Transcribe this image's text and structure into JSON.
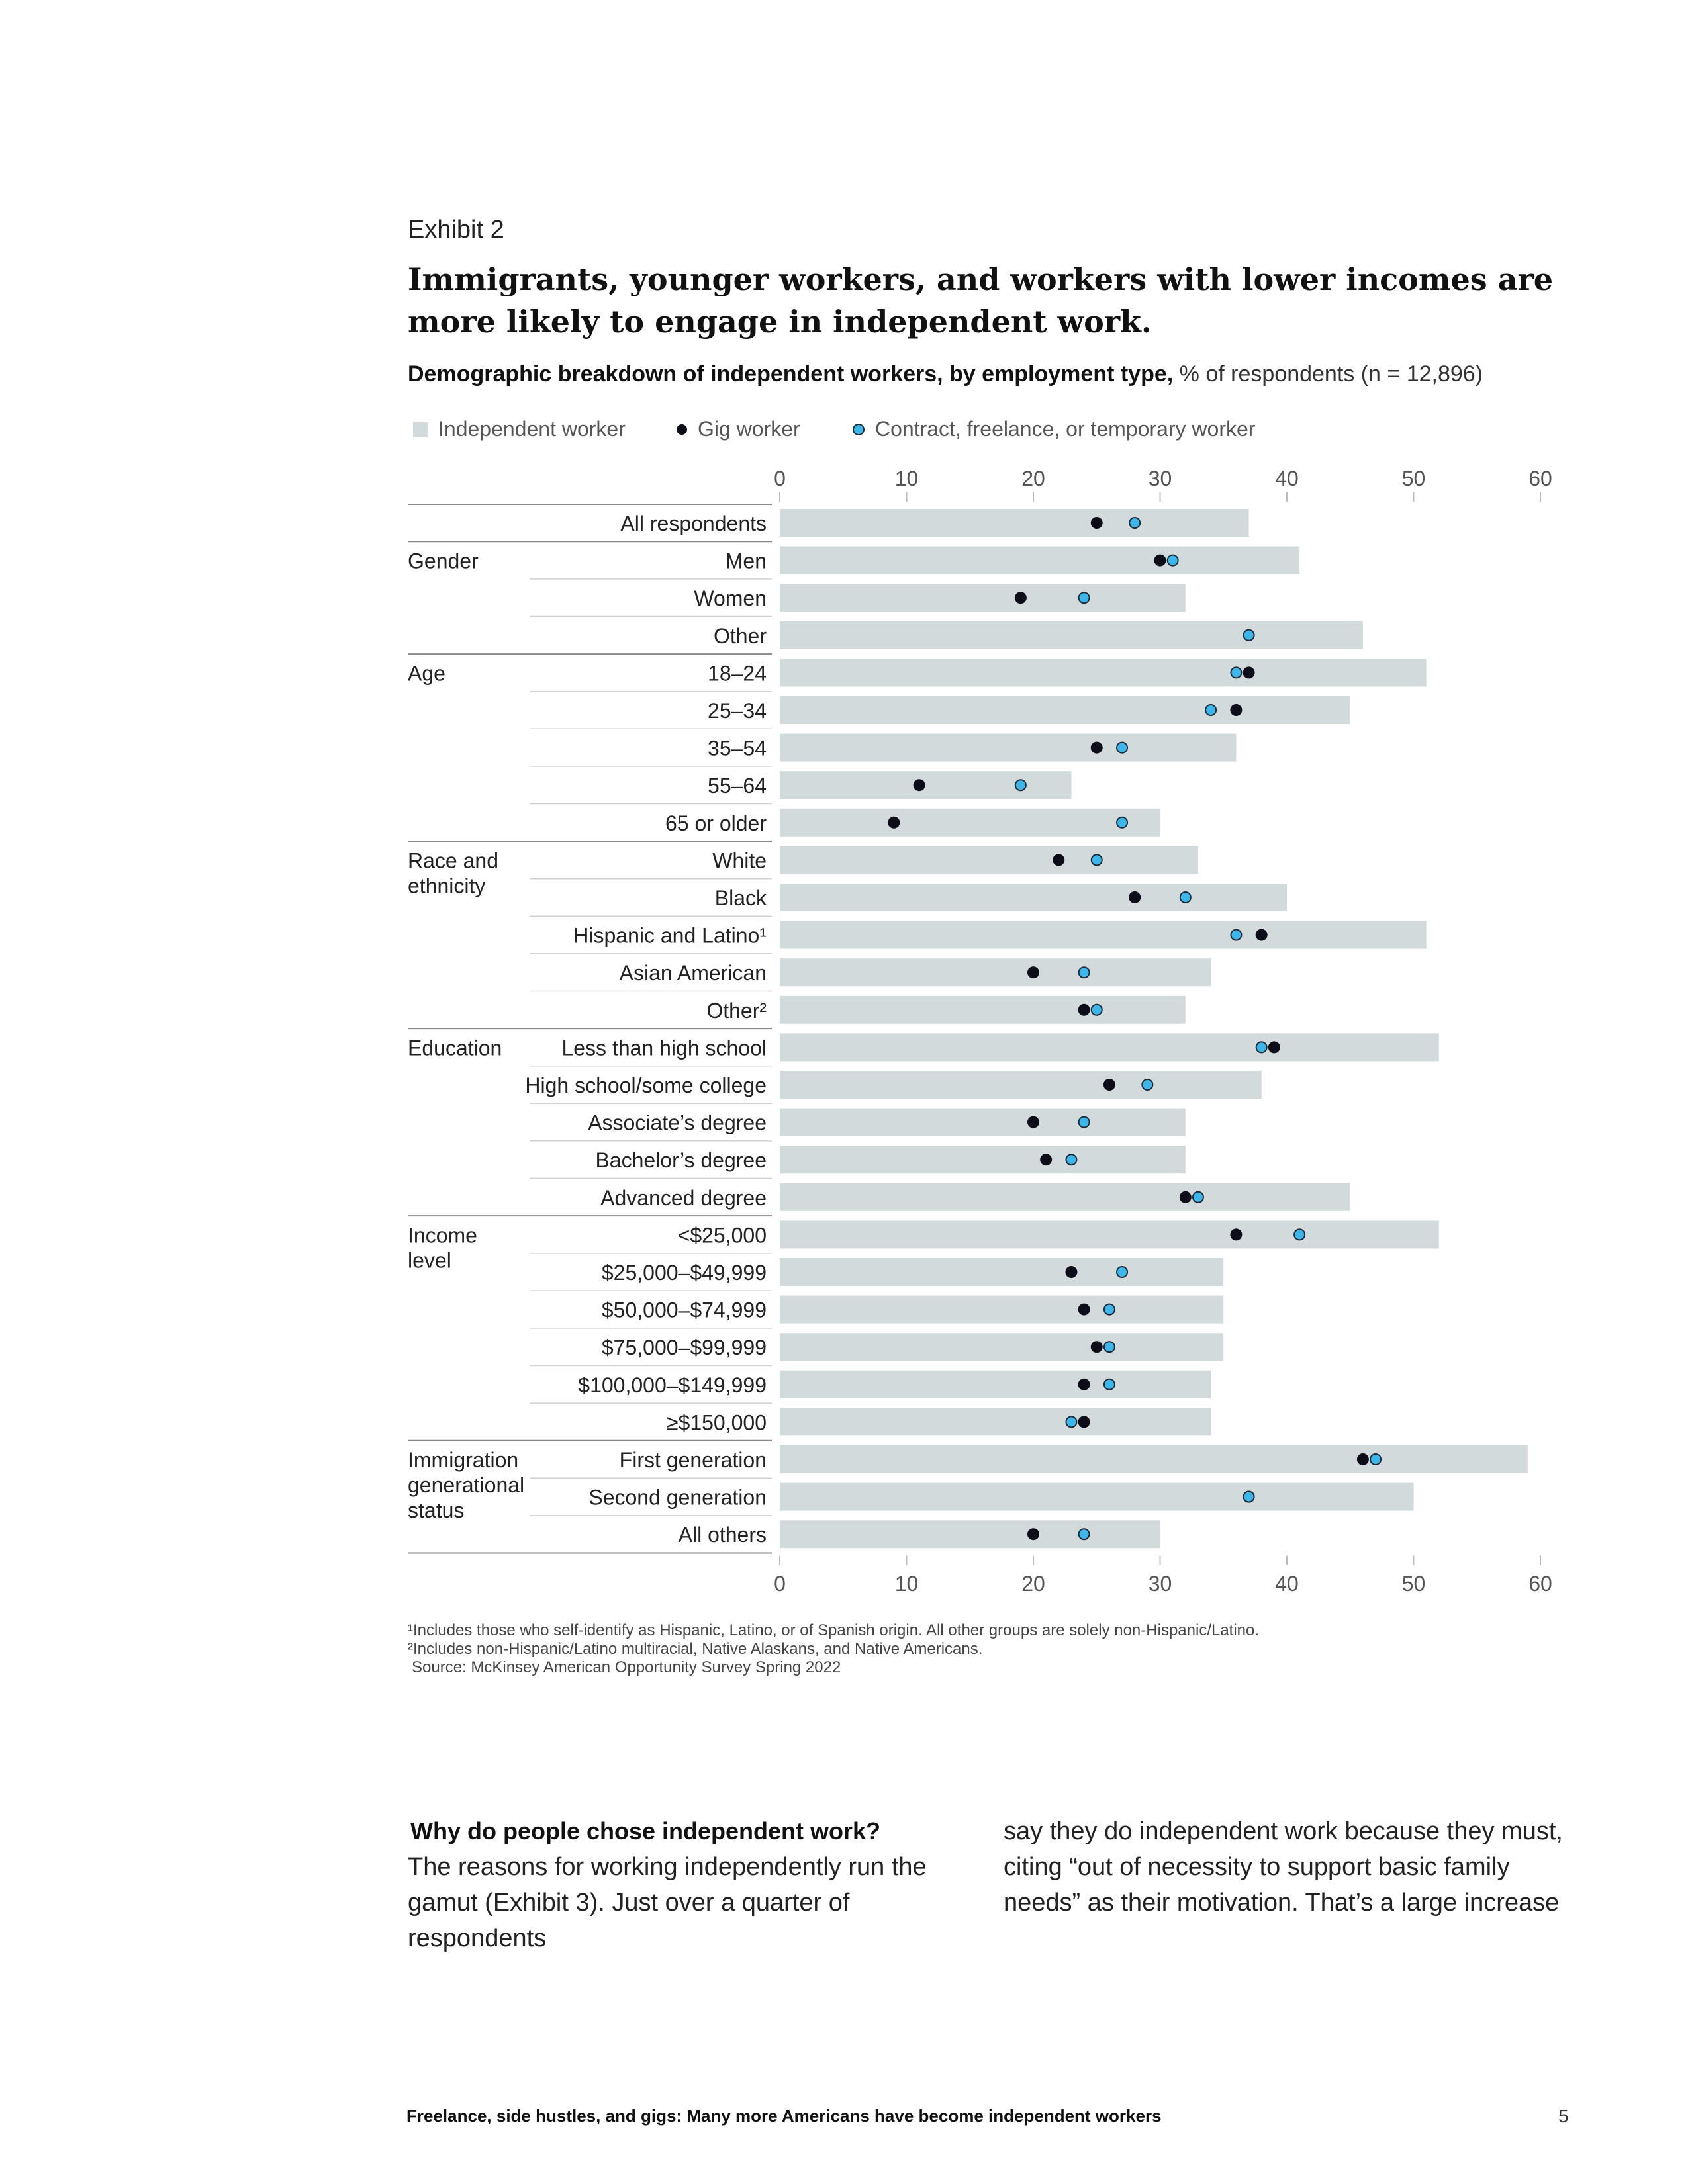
{
  "exhibit_label": "Exhibit 2",
  "headline": "Immigrants, younger workers, and workers with lower incomes are more likely to engage in independent work.",
  "subtitle_bold": "Demographic breakdown of independent workers, by employment type,",
  "subtitle_rest": "% of respondents (n = 12,896)",
  "legend": {
    "independent": "Independent worker",
    "gig": "Gig worker",
    "contract": "Contract, freelance, or temporary worker"
  },
  "colors": {
    "bar": "#d3dadb",
    "gig_dot": "#0d0d1a",
    "contract_dot": "#3fb6ea",
    "rule": "#888888"
  },
  "chart_data": {
    "type": "bar",
    "title": "Demographic breakdown of independent workers, by employment type",
    "xlabel": "% of respondents",
    "xlim": [
      0,
      60
    ],
    "ticks": [
      "0",
      "10",
      "20",
      "30",
      "40",
      "50",
      "60"
    ],
    "grid": false,
    "groups": [
      {
        "name": "",
        "rows": [
          {
            "label": "All respondents",
            "independent": 37,
            "gig": 25,
            "contract": 28
          }
        ]
      },
      {
        "name": "Gender",
        "rows": [
          {
            "label": "Men",
            "independent": 41,
            "gig": 30,
            "contract": 31
          },
          {
            "label": "Women",
            "independent": 32,
            "gig": 19,
            "contract": 24
          },
          {
            "label": "Other",
            "independent": 46,
            "gig": 37,
            "contract": 37
          }
        ]
      },
      {
        "name": "Age",
        "rows": [
          {
            "label": "18–24",
            "independent": 51,
            "gig": 37,
            "contract": 36
          },
          {
            "label": "25–34",
            "independent": 45,
            "gig": 36,
            "contract": 34
          },
          {
            "label": "35–54",
            "independent": 36,
            "gig": 25,
            "contract": 27
          },
          {
            "label": "55–64",
            "independent": 23,
            "gig": 11,
            "contract": 19
          },
          {
            "label": "65 or older",
            "independent": 30,
            "gig": 9,
            "contract": 27
          }
        ]
      },
      {
        "name": "Race and ethnicity",
        "rows": [
          {
            "label": "White",
            "independent": 33,
            "gig": 22,
            "contract": 25
          },
          {
            "label": "Black",
            "independent": 40,
            "gig": 28,
            "contract": 32
          },
          {
            "label": "Hispanic and Latino¹",
            "independent": 51,
            "gig": 38,
            "contract": 36
          },
          {
            "label": "Asian American",
            "independent": 34,
            "gig": 20,
            "contract": 24
          },
          {
            "label": "Other²",
            "independent": 32,
            "gig": 24,
            "contract": 25
          }
        ]
      },
      {
        "name": "Education",
        "rows": [
          {
            "label": "Less than high school",
            "independent": 52,
            "gig": 39,
            "contract": 38
          },
          {
            "label": "High school/some college",
            "independent": 38,
            "gig": 26,
            "contract": 29
          },
          {
            "label": "Associate’s degree",
            "independent": 32,
            "gig": 20,
            "contract": 24
          },
          {
            "label": "Bachelor’s degree",
            "independent": 32,
            "gig": 21,
            "contract": 23
          },
          {
            "label": "Advanced degree",
            "independent": 45,
            "gig": 32,
            "contract": 33
          }
        ]
      },
      {
        "name": "Income level",
        "rows": [
          {
            "label": "<$25,000",
            "independent": 52,
            "gig": 36,
            "contract": 41
          },
          {
            "label": "$25,000–$49,999",
            "independent": 35,
            "gig": 23,
            "contract": 27
          },
          {
            "label": "$50,000–$74,999",
            "independent": 35,
            "gig": 24,
            "contract": 26
          },
          {
            "label": "$75,000–$99,999",
            "independent": 35,
            "gig": 25,
            "contract": 26
          },
          {
            "label": "$100,000–$149,999",
            "independent": 34,
            "gig": 24,
            "contract": 26
          },
          {
            "label": "≥$150,000",
            "independent": 34,
            "gig": 24,
            "contract": 23
          }
        ]
      },
      {
        "name": "Immigration generational status",
        "rows": [
          {
            "label": "First generation",
            "independent": 59,
            "gig": 46,
            "contract": 47
          },
          {
            "label": "Second generation",
            "independent": 50,
            "gig": 37,
            "contract": 37
          },
          {
            "label": "All others",
            "independent": 30,
            "gig": 20,
            "contract": 24
          }
        ]
      }
    ]
  },
  "footnotes": {
    "f1": "¹Includes those who self-identify as Hispanic, Latino, or of Spanish origin. All other groups are solely non-Hispanic/Latino.",
    "f2": "²Includes non-Hispanic/Latino multiracial, Native Alaskans, and Native Americans.",
    "source": "Source: McKinsey American Opportunity Survey Spring 2022"
  },
  "body": {
    "heading": "Why do people chose independent work?",
    "left_text": "The reasons for working independently run the gamut (Exhibit 3). Just over a quarter of respondents",
    "right_text": "say they do independent work because they must, citing “out of necessity to support basic family needs” as their motivation. That’s a large increase"
  },
  "footer": {
    "text": "Freelance, side hustles, and gigs: Many more Americans have become independent workers",
    "page": "5"
  }
}
